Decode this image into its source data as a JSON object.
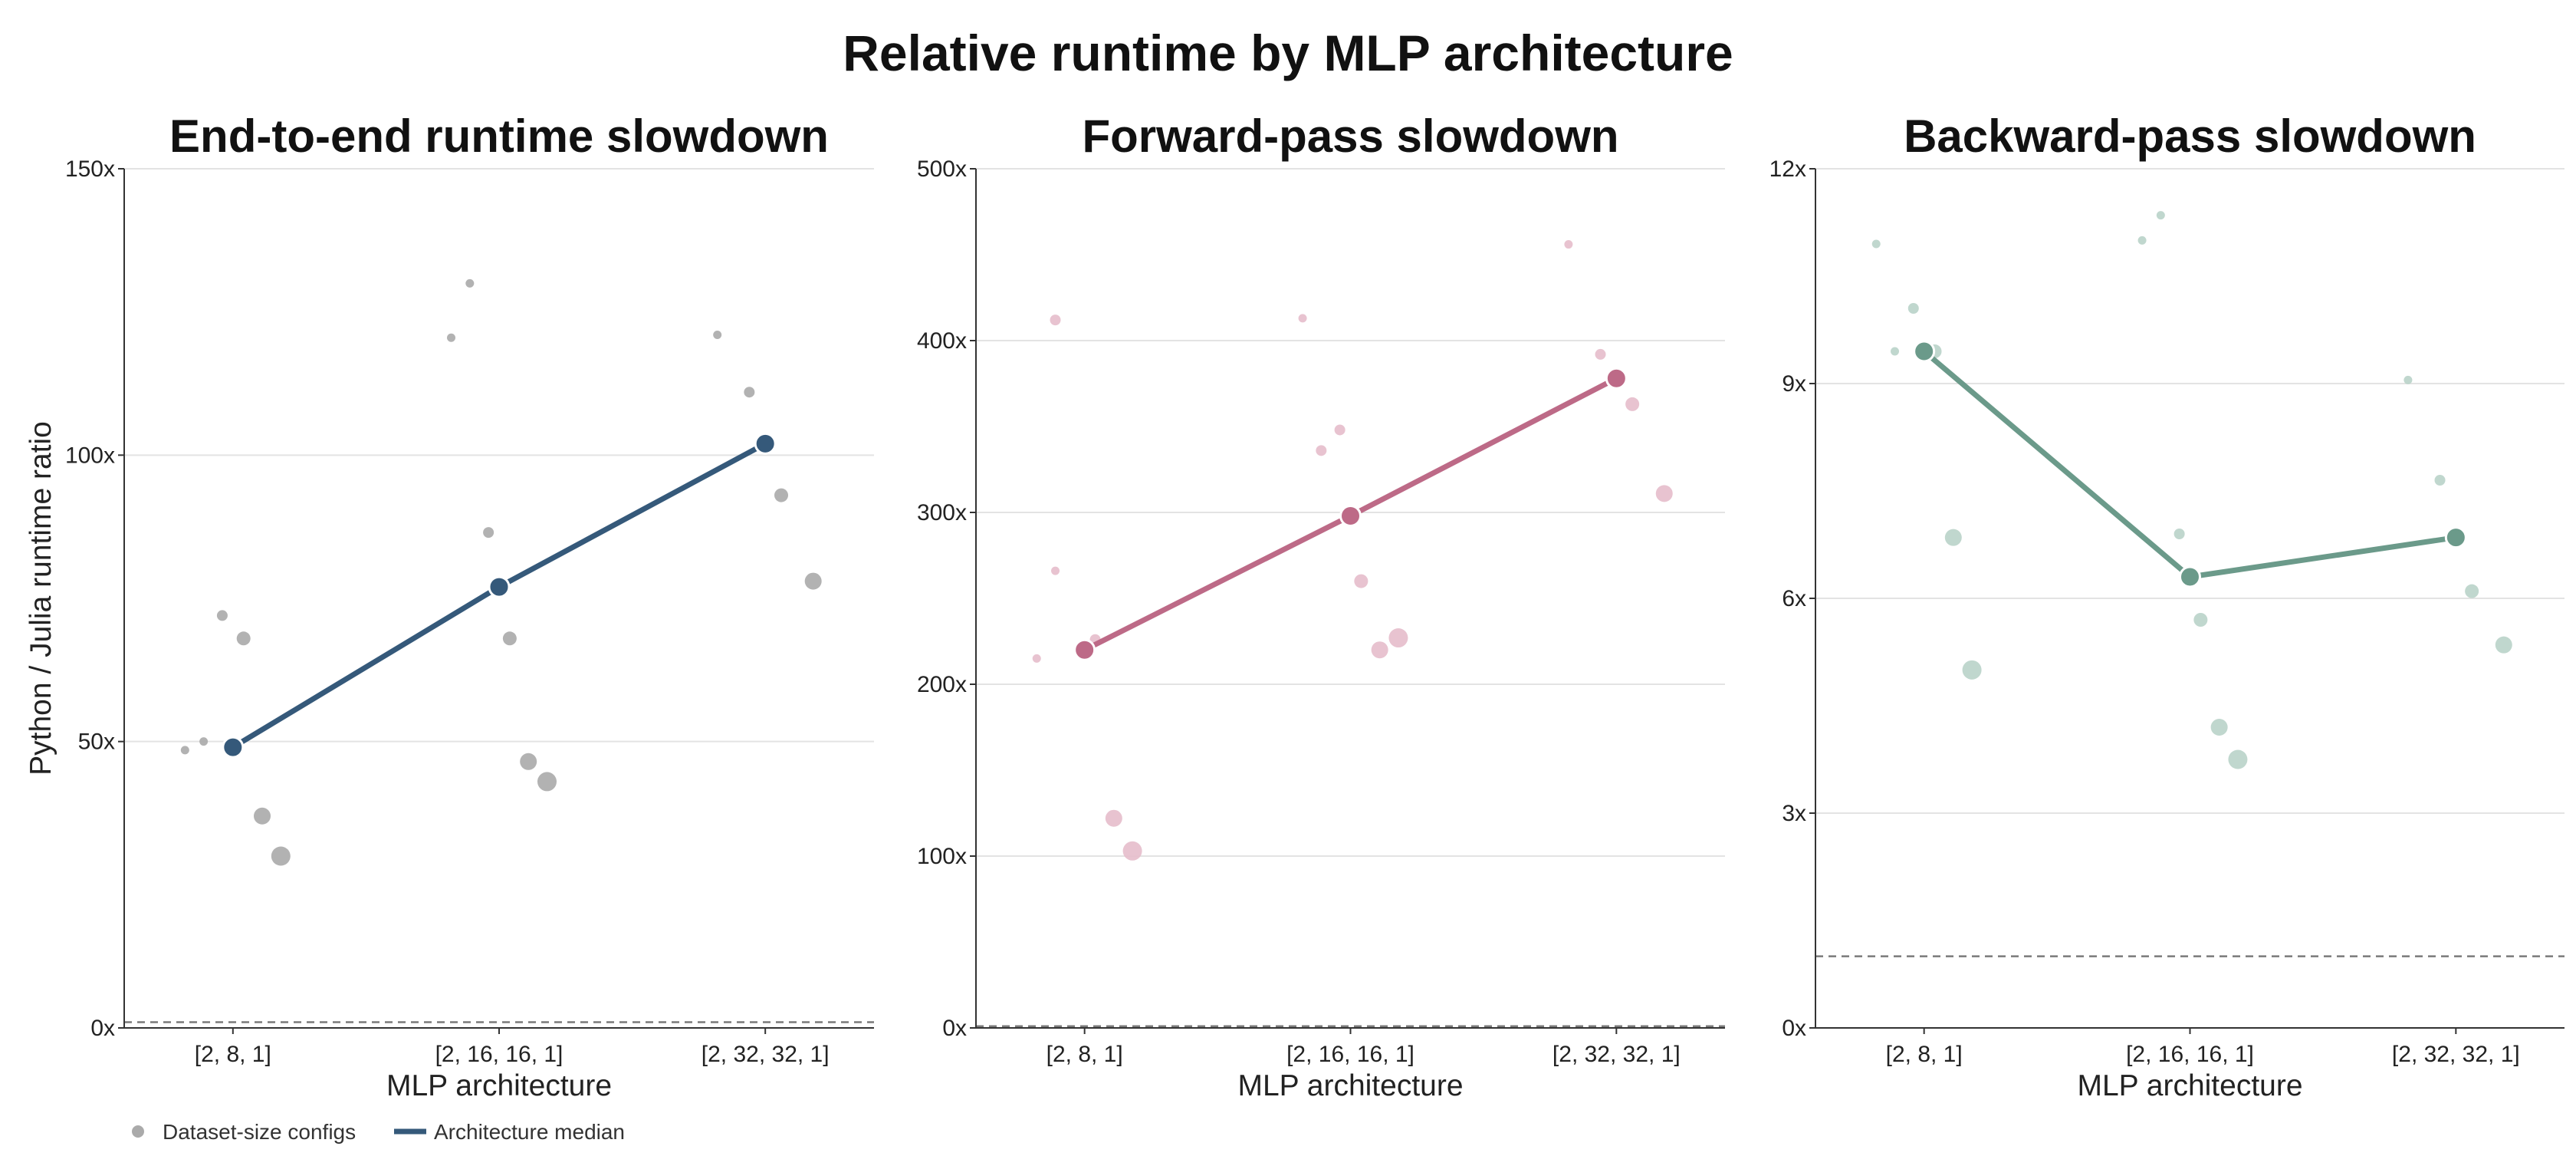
{
  "figure": {
    "title": "Relative runtime by MLP architecture"
  },
  "legend": {
    "dot_label": "Dataset-size configs",
    "line_label": "Architecture median",
    "dot_color": "#aaaaaa",
    "line_color": "#35597a"
  },
  "chart_data": [
    {
      "type": "scatter",
      "title": "End-to-end runtime slowdown",
      "xlabel": "MLP architecture",
      "ylabel": "Python / Julia runtime ratio",
      "categories": [
        "[2, 8, 1]",
        "[2, 16, 16, 1]",
        "[2, 32, 32, 1]"
      ],
      "ylim": [
        0,
        150
      ],
      "yticks": [
        "0x",
        "50x",
        "100x",
        "150x"
      ],
      "yticks_values": [
        0,
        50,
        100,
        150
      ],
      "reference_line": 1,
      "median_color": "#35597a",
      "config_color": "#aaaaaa",
      "median": [
        49,
        77,
        102
      ],
      "configs": [
        {
          "category": 0,
          "offset": -0.18,
          "value": 48.5,
          "size": 1
        },
        {
          "category": 0,
          "offset": -0.11,
          "value": 50,
          "size": 1
        },
        {
          "category": 0,
          "offset": -0.04,
          "value": 72,
          "size": 2
        },
        {
          "category": 0,
          "offset": 0.04,
          "value": 68,
          "size": 3
        },
        {
          "category": 0,
          "offset": 0.11,
          "value": 37,
          "size": 4
        },
        {
          "category": 0,
          "offset": 0.18,
          "value": 30,
          "size": 5
        },
        {
          "category": 1,
          "offset": -0.18,
          "value": 120.5,
          "size": 1
        },
        {
          "category": 1,
          "offset": -0.11,
          "value": 130,
          "size": 1
        },
        {
          "category": 1,
          "offset": -0.04,
          "value": 86.5,
          "size": 2
        },
        {
          "category": 1,
          "offset": 0.04,
          "value": 68,
          "size": 3
        },
        {
          "category": 1,
          "offset": 0.11,
          "value": 46.5,
          "size": 4
        },
        {
          "category": 1,
          "offset": 0.18,
          "value": 43,
          "size": 5
        },
        {
          "category": 2,
          "offset": -0.18,
          "value": 121,
          "size": 1
        },
        {
          "category": 2,
          "offset": -0.06,
          "value": 111,
          "size": 2
        },
        {
          "category": 2,
          "offset": 0.06,
          "value": 93,
          "size": 3
        },
        {
          "category": 2,
          "offset": 0.18,
          "value": 78,
          "size": 4
        }
      ]
    },
    {
      "type": "scatter",
      "title": "Forward-pass slowdown",
      "xlabel": "MLP architecture",
      "ylabel": "",
      "categories": [
        "[2, 8, 1]",
        "[2, 16, 16, 1]",
        "[2, 32, 32, 1]"
      ],
      "ylim": [
        0,
        500
      ],
      "yticks": [
        "0x",
        "100x",
        "200x",
        "300x",
        "400x",
        "500x"
      ],
      "yticks_values": [
        0,
        100,
        200,
        300,
        400,
        500
      ],
      "reference_line": 1,
      "median_color": "#bd6a87",
      "config_color": "#e5bccb",
      "median": [
        220,
        298,
        378
      ],
      "configs": [
        {
          "category": 0,
          "offset": -0.18,
          "value": 215,
          "size": 1
        },
        {
          "category": 0,
          "offset": -0.11,
          "value": 412,
          "size": 2
        },
        {
          "category": 0,
          "offset": -0.11,
          "value": 266,
          "size": 1
        },
        {
          "category": 0,
          "offset": 0.04,
          "value": 226,
          "size": 2
        },
        {
          "category": 0,
          "offset": 0.11,
          "value": 122,
          "size": 4
        },
        {
          "category": 0,
          "offset": 0.18,
          "value": 103,
          "size": 5
        },
        {
          "category": 1,
          "offset": -0.18,
          "value": 413,
          "size": 1
        },
        {
          "category": 1,
          "offset": -0.11,
          "value": 336,
          "size": 2
        },
        {
          "category": 1,
          "offset": -0.04,
          "value": 348,
          "size": 2
        },
        {
          "category": 1,
          "offset": 0.04,
          "value": 260,
          "size": 3
        },
        {
          "category": 1,
          "offset": 0.11,
          "value": 220,
          "size": 4
        },
        {
          "category": 1,
          "offset": 0.18,
          "value": 227,
          "size": 5
        },
        {
          "category": 2,
          "offset": -0.18,
          "value": 456,
          "size": 1
        },
        {
          "category": 2,
          "offset": -0.06,
          "value": 392,
          "size": 2
        },
        {
          "category": 2,
          "offset": 0.06,
          "value": 363,
          "size": 3
        },
        {
          "category": 2,
          "offset": 0.18,
          "value": 311,
          "size": 4
        }
      ]
    },
    {
      "type": "scatter",
      "title": "Backward-pass slowdown",
      "xlabel": "MLP architecture",
      "ylabel": "",
      "categories": [
        "[2, 8, 1]",
        "[2, 16, 16, 1]",
        "[2, 32, 32, 1]"
      ],
      "ylim": [
        0,
        12
      ],
      "yticks": [
        "0x",
        "3x",
        "6x",
        "9x",
        "12x"
      ],
      "yticks_values": [
        0,
        3,
        6,
        9,
        12
      ],
      "reference_line": 1,
      "median_color": "#6b9a8a",
      "config_color": "#b9d3c9",
      "median": [
        9.45,
        6.3,
        6.85
      ],
      "configs": [
        {
          "category": 0,
          "offset": -0.18,
          "value": 10.95,
          "size": 1
        },
        {
          "category": 0,
          "offset": -0.11,
          "value": 9.45,
          "size": 1
        },
        {
          "category": 0,
          "offset": -0.04,
          "value": 10.05,
          "size": 2
        },
        {
          "category": 0,
          "offset": 0.04,
          "value": 9.45,
          "size": 3
        },
        {
          "category": 0,
          "offset": 0.11,
          "value": 6.85,
          "size": 4
        },
        {
          "category": 0,
          "offset": 0.18,
          "value": 5.0,
          "size": 5
        },
        {
          "category": 1,
          "offset": -0.18,
          "value": 11.0,
          "size": 1
        },
        {
          "category": 1,
          "offset": -0.11,
          "value": 11.35,
          "size": 1
        },
        {
          "category": 1,
          "offset": -0.04,
          "value": 6.9,
          "size": 2
        },
        {
          "category": 1,
          "offset": 0.04,
          "value": 5.7,
          "size": 3
        },
        {
          "category": 1,
          "offset": 0.11,
          "value": 4.2,
          "size": 4
        },
        {
          "category": 1,
          "offset": 0.18,
          "value": 3.75,
          "size": 5
        },
        {
          "category": 2,
          "offset": -0.18,
          "value": 9.05,
          "size": 1
        },
        {
          "category": 2,
          "offset": -0.06,
          "value": 7.65,
          "size": 2
        },
        {
          "category": 2,
          "offset": 0.06,
          "value": 6.1,
          "size": 3
        },
        {
          "category": 2,
          "offset": 0.18,
          "value": 5.35,
          "size": 4
        }
      ]
    }
  ]
}
